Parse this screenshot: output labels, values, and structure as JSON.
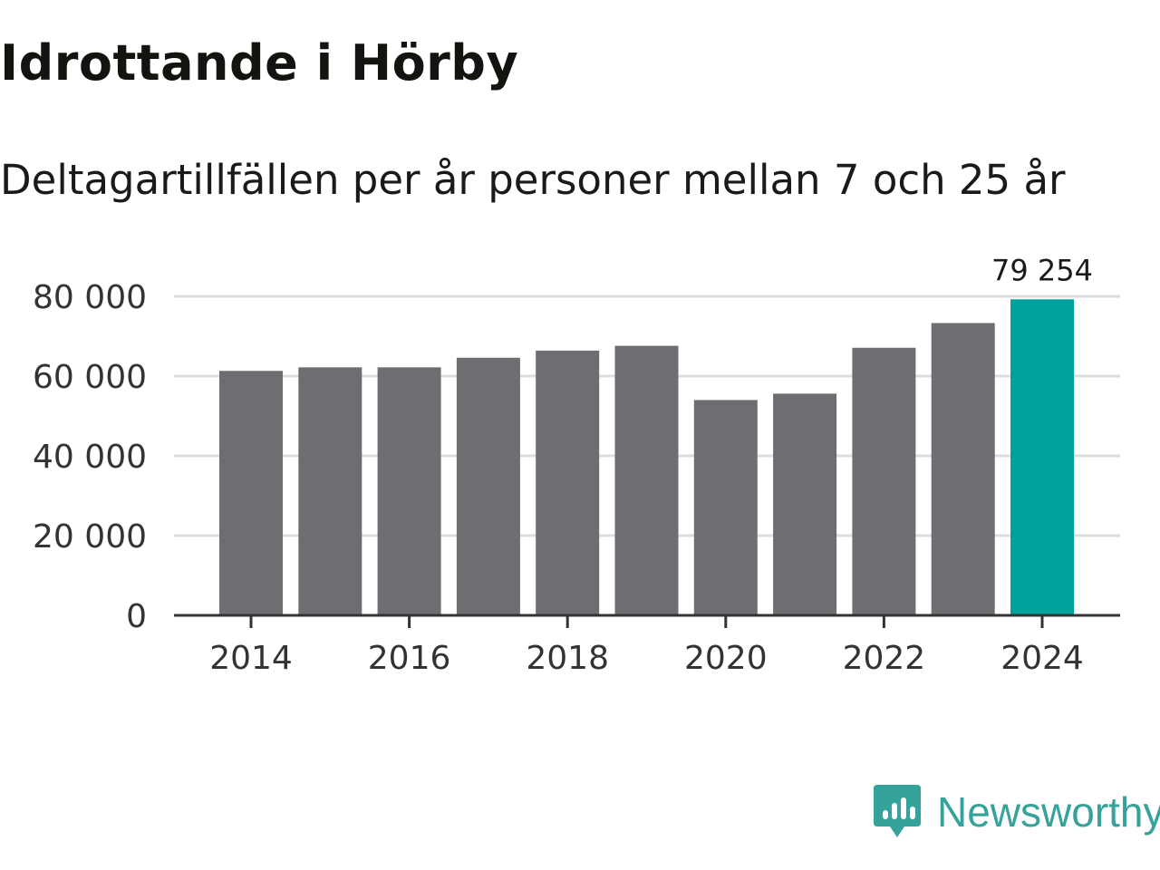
{
  "header": {
    "title": "Idrottande i Hörby",
    "subtitle": "Deltagartillfällen per år personer mellan 7 och 25 år"
  },
  "chart_data": {
    "type": "bar",
    "title": "Idrottande i Hörby",
    "subtitle": "Deltagartillfällen per år personer mellan 7 och 25 år",
    "xlabel": "",
    "ylabel": "",
    "categories": [
      "2014",
      "2015",
      "2016",
      "2017",
      "2018",
      "2019",
      "2020",
      "2021",
      "2022",
      "2023",
      "2024"
    ],
    "values": [
      61300,
      62200,
      62200,
      64600,
      66400,
      67600,
      54000,
      55600,
      67100,
      73300,
      79254
    ],
    "ylim": [
      0,
      80000
    ],
    "yticks": [
      0,
      20000,
      40000,
      60000,
      80000
    ],
    "ytick_labels": [
      "0",
      "20 000",
      "40 000",
      "60 000",
      "80 000"
    ],
    "xtick_labels": [
      "2014",
      "2016",
      "2018",
      "2020",
      "2022",
      "2024"
    ],
    "highlight_index": 10,
    "data_label": "79 254",
    "grid": true,
    "legend": "none"
  },
  "colors": {
    "bar": "#6e6d72",
    "highlight": "#00a39b",
    "grid": "#dcdcdc",
    "axis": "#333333",
    "brand": "#36a39b"
  },
  "footer": {
    "logo_icon": "bar-chart-speech-bubble-icon",
    "brand": "Newsworthy"
  }
}
